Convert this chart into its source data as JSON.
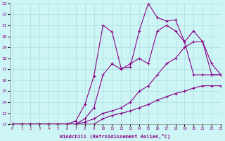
{
  "xlabel": "Windchill (Refroidissement éolien,°C)",
  "bg_color": "#cdf5f5",
  "grid_color": "#aadddd",
  "line_color": "#880088",
  "xlim": [
    0,
    23
  ],
  "ylim": [
    12,
    23
  ],
  "xticks": [
    0,
    1,
    2,
    3,
    4,
    5,
    6,
    7,
    8,
    9,
    10,
    11,
    12,
    13,
    14,
    15,
    16,
    17,
    18,
    19,
    20,
    21,
    22,
    23
  ],
  "yticks": [
    12,
    13,
    14,
    15,
    16,
    17,
    18,
    19,
    20,
    21,
    22,
    23
  ],
  "line1_x": [
    0,
    1,
    2,
    3,
    4,
    5,
    6,
    7,
    8,
    9,
    10,
    11,
    12,
    13,
    14,
    15,
    16,
    17,
    18,
    19,
    20,
    21,
    22,
    23
  ],
  "line1_y": [
    12,
    12,
    12,
    12,
    12,
    12,
    12,
    12,
    12,
    12,
    12.5,
    12.8,
    13,
    13.2,
    13.5,
    13.8,
    14.2,
    14.5,
    14.8,
    15,
    15.3,
    15.5,
    15.5,
    15.5
  ],
  "line2_x": [
    0,
    1,
    2,
    3,
    4,
    5,
    6,
    7,
    8,
    9,
    10,
    11,
    12,
    13,
    14,
    15,
    16,
    17,
    18,
    19,
    20,
    21,
    22,
    23
  ],
  "line2_y": [
    12,
    12,
    12,
    12,
    12,
    12,
    12,
    12,
    12.2,
    12.5,
    13,
    13.2,
    13.5,
    14,
    15,
    15.5,
    16.5,
    17.5,
    18,
    19,
    19.5,
    19.5,
    17.5,
    16.5
  ],
  "line3_x": [
    0,
    1,
    2,
    3,
    4,
    5,
    6,
    7,
    8,
    9,
    10,
    11,
    12,
    13,
    14,
    15,
    16,
    17,
    18,
    19,
    20,
    21,
    22,
    23
  ],
  "line3_y": [
    12,
    12,
    12,
    12,
    12,
    12,
    12,
    12,
    12.5,
    13.5,
    16.5,
    17.5,
    17,
    17.5,
    18,
    17.5,
    20.5,
    21,
    20.5,
    19.5,
    16.5,
    16.5,
    16.5,
    16.5
  ],
  "line4_x": [
    0,
    1,
    2,
    3,
    4,
    5,
    6,
    7,
    8,
    9,
    10,
    11,
    12,
    13,
    14,
    15,
    16,
    17,
    18,
    19,
    20,
    21,
    22,
    23
  ],
  "line4_y": [
    12,
    12,
    12,
    12,
    12,
    12,
    12,
    12.3,
    13.8,
    16.4,
    21,
    20.4,
    17.1,
    17.2,
    20.5,
    23,
    21.7,
    21.4,
    21.5,
    19.5,
    20.5,
    19.5,
    16.5,
    16.5
  ]
}
